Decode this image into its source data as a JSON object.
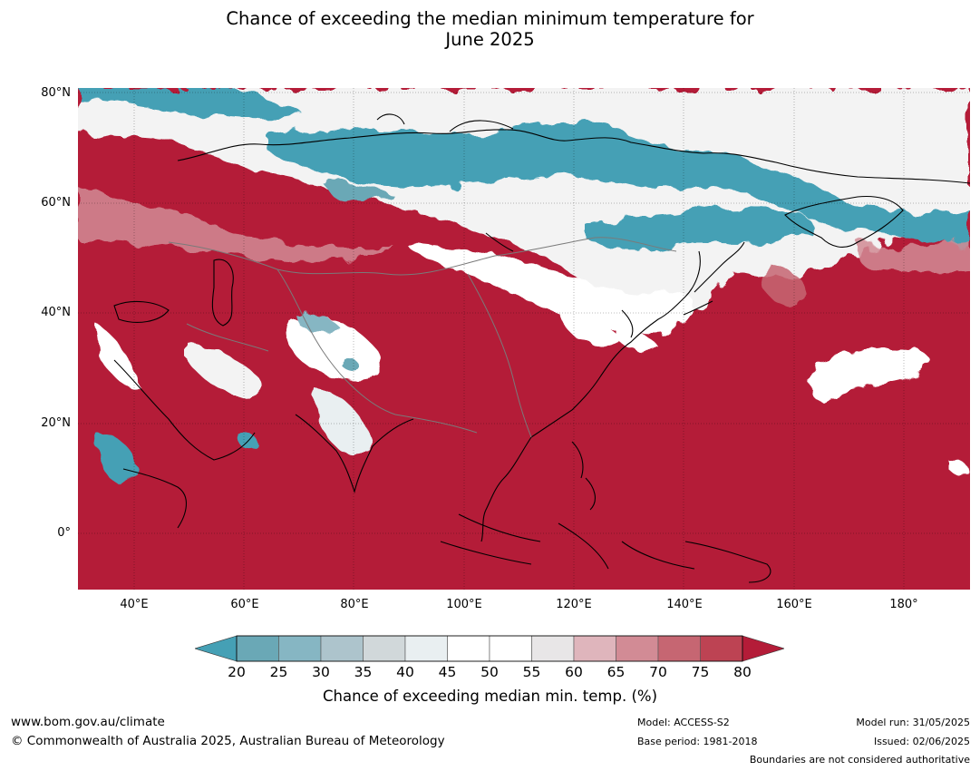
{
  "title_line1": "Chance of exceeding the median minimum temperature for",
  "title_line2": "June 2025",
  "lat_labels": [
    "80°N",
    "60°N",
    "40°N",
    "20°N",
    "0°"
  ],
  "lon_labels": [
    "40°E",
    "60°E",
    "80°E",
    "100°E",
    "120°E",
    "140°E",
    "160°E",
    "180°"
  ],
  "colorbar": {
    "ticks": [
      "20",
      "25",
      "30",
      "35",
      "40",
      "45",
      "50",
      "55",
      "60",
      "65",
      "70",
      "75",
      "80"
    ],
    "label": "Chance of exceeding median min. temp. (%)",
    "colors": {
      "lt20": "#45a0b5",
      "20-25": "#6aa8b6",
      "25-30": "#86b6c3",
      "30-35": "#adc4cc",
      "35-40": "#d1d8da",
      "40-45": "#e9eff1",
      "45-50": "#ffffff",
      "50-55": "#ffffff",
      "55-60": "#e8e6e7",
      "60-65": "#dfb5bc",
      "65-70": "#d28b95",
      "70-75": "#c66672",
      "75-80": "#bd4353",
      "gt80": "#b41c38"
    }
  },
  "footer": {
    "website": "www.bom.gov.au/climate",
    "copyright": "© Commonwealth of Australia 2025, Australian Bureau of Meteorology",
    "model": "Model: ACCESS-S2",
    "base_period": "Base period: 1981-2018",
    "model_run": "Model run: 31/05/2025",
    "issued": "Issued: 02/06/2025",
    "boundaries_note": "Boundaries are not considered authoritative"
  }
}
